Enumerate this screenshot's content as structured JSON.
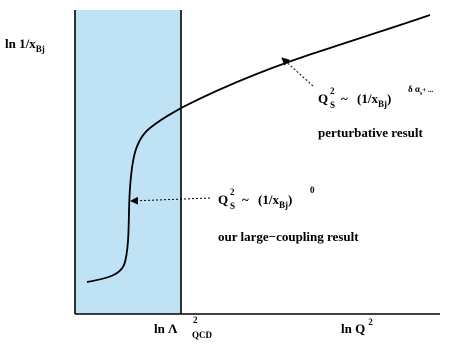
{
  "axes": {
    "y_label": {
      "main": "ln 1/x",
      "sub": "Bj"
    },
    "x_label": {
      "main": "ln Q",
      "sup": "2"
    },
    "lambda_label": {
      "main": "ln Λ",
      "sup": "2",
      "sub": "QCD"
    }
  },
  "annotations": {
    "perturbative": {
      "formula_lhs": "Q",
      "lhs_sup": "2",
      "lhs_sub": "S",
      "tilde": "~",
      "rhs": "(1/x",
      "rhs_sub": "Bj",
      "rhs_close": ")",
      "rhs_exp": "δ α",
      "rhs_exp_sub": "s",
      "rhs_exp_tail": "+ ...",
      "caption": "perturbative result"
    },
    "large_coupling": {
      "formula_lhs": "Q",
      "lhs_sup": "2",
      "lhs_sub": "S",
      "tilde": "~",
      "rhs": "(1/x",
      "rhs_sub": "Bj",
      "rhs_close": ")",
      "rhs_exp": "0",
      "caption": "our large−coupling result"
    }
  },
  "colors": {
    "shaded_region": "#bfe3f5",
    "line": "#000000"
  }
}
